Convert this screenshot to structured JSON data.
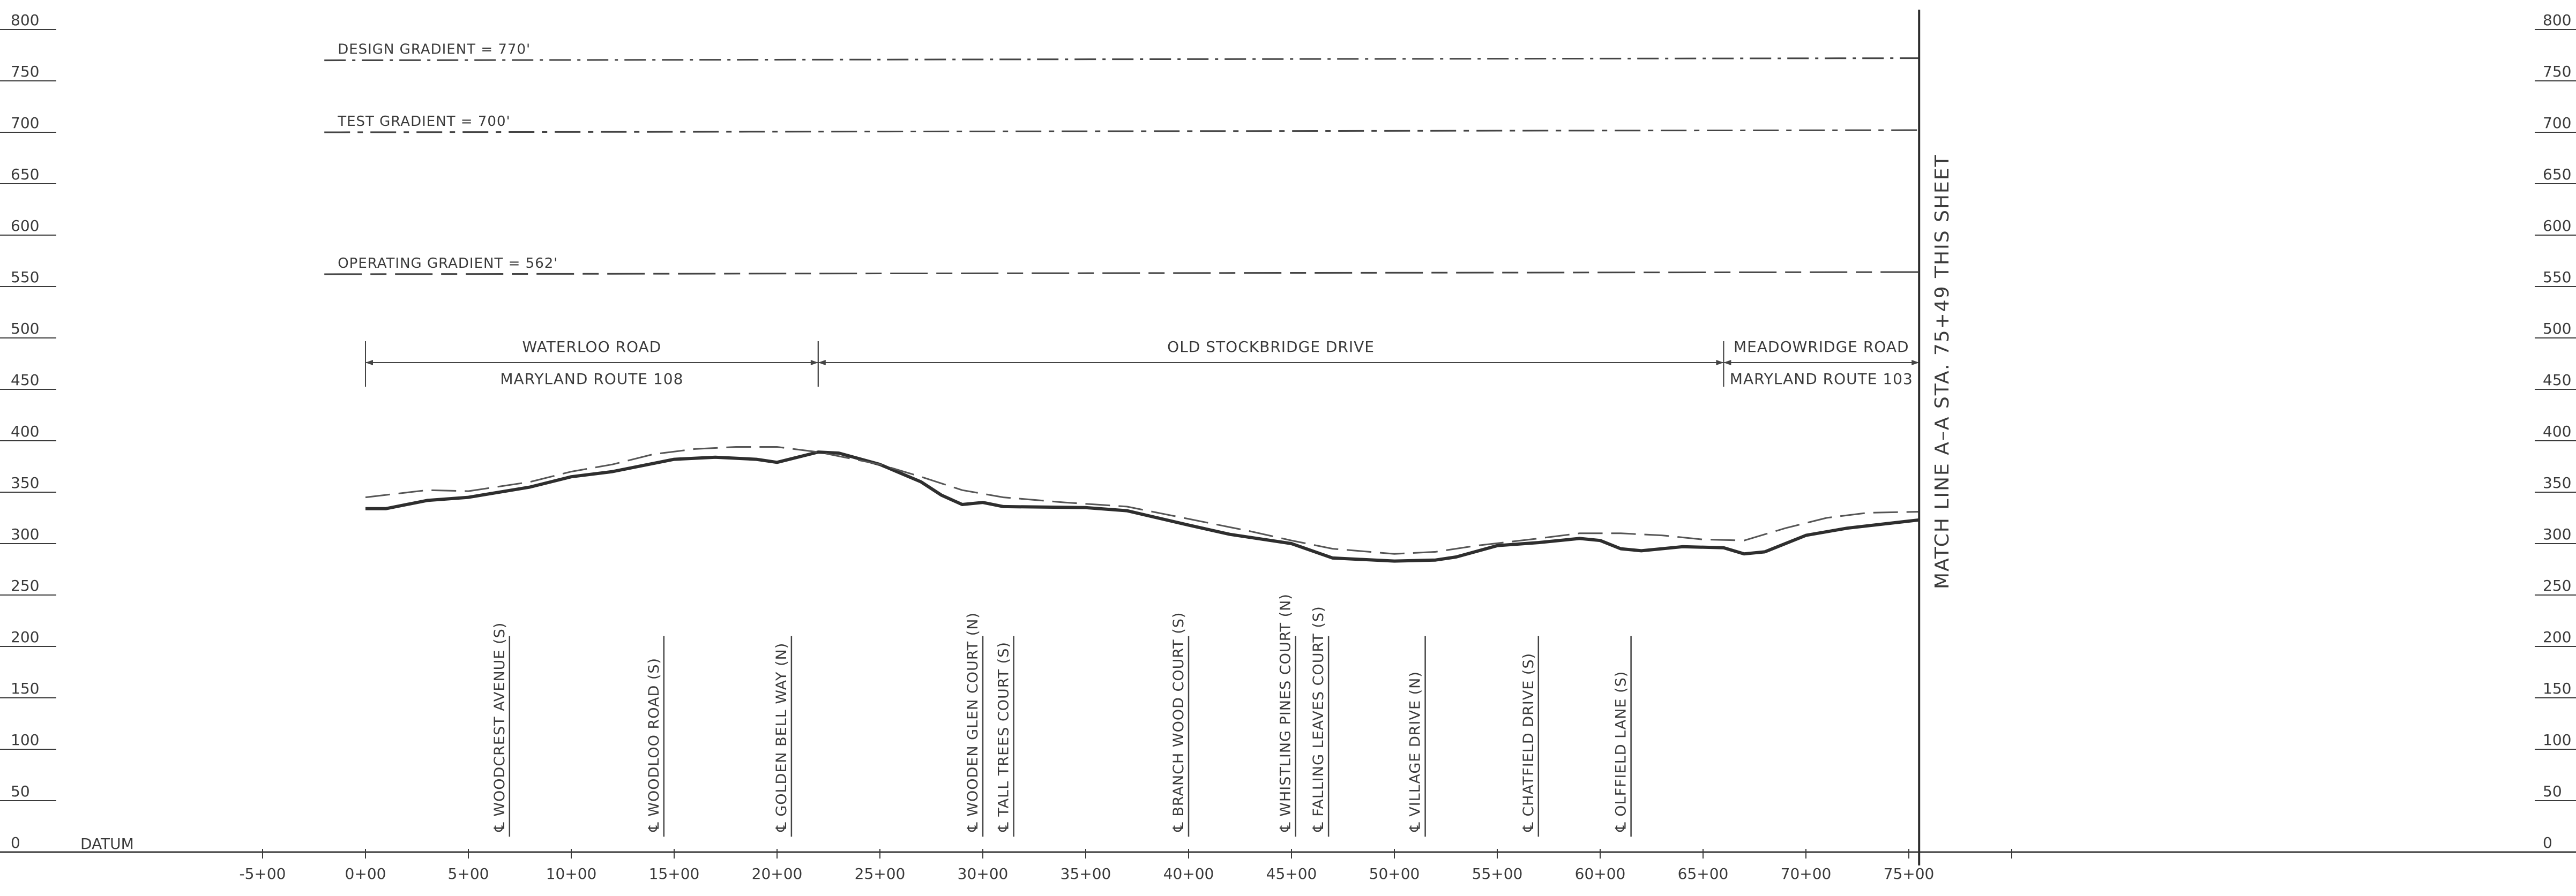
{
  "chart_data": {
    "type": "line",
    "y_ticks": [
      0,
      50,
      100,
      150,
      200,
      250,
      300,
      350,
      400,
      450,
      500,
      550,
      600,
      650,
      700,
      750,
      800
    ],
    "ylim": [
      0,
      800
    ],
    "x_ticks": [
      "-5+00",
      "0+00",
      "5+00",
      "10+00",
      "15+00",
      "20+00",
      "25+00",
      "30+00",
      "35+00",
      "40+00",
      "45+00",
      "50+00",
      "55+00",
      "60+00",
      "65+00",
      "70+00",
      "75+00"
    ],
    "xlim_stations": [
      -5,
      80
    ],
    "datum_label": "DATUM",
    "gradients": [
      {
        "label": "DESIGN GRADIENT = 770'",
        "elevation": 770,
        "start_station": -2,
        "end_station": 75.5
      },
      {
        "label": "TEST GRADIENT = 700'",
        "elevation": 700,
        "start_station": -2,
        "end_station": 75.5
      },
      {
        "label": "OPERATING GRADIENT = 562'",
        "elevation": 562,
        "start_station": -2,
        "end_station": 75.5
      }
    ],
    "roads": [
      {
        "top": "WATERLOO ROAD",
        "bottom": "MARYLAND ROUTE 108",
        "from_station": 0,
        "to_station": 22
      },
      {
        "top": "OLD STOCKBRIDGE DRIVE",
        "bottom": "",
        "from_station": 22,
        "to_station": 66
      },
      {
        "top": "MEADOWRIDGE ROAD",
        "bottom": "MARYLAND ROUTE 103",
        "from_station": 66,
        "to_station": 75.5
      }
    ],
    "streets": [
      {
        "label": "℄ WOODCREST AVENUE (S)",
        "station": 7
      },
      {
        "label": "℄ WOODLOO ROAD (S)",
        "station": 14.5
      },
      {
        "label": "℄ GOLDEN BELL WAY (N)",
        "station": 20.7
      },
      {
        "label": "℄ WOODEN GLEN COURT (N)",
        "station": 30
      },
      {
        "label": "℄ TALL TREES COURT (S)",
        "station": 31.5
      },
      {
        "label": "℄ BRANCH WOOD COURT (S)",
        "station": 40
      },
      {
        "label": "℄ WHISTLING PINES COURT (N)",
        "station": 45.2
      },
      {
        "label": "℄ FALLING LEAVES COURT (S)",
        "station": 46.8
      },
      {
        "label": "℄ VILLAGE DRIVE (N)",
        "station": 51.5
      },
      {
        "label": "℄ CHATFIELD DRIVE (S)",
        "station": 57
      },
      {
        "label": "℄ OLFFIELD LANE (S)",
        "station": 61.5
      }
    ],
    "match_line": "MATCH LINE A–A STA. 75+49 THIS SHEET",
    "series": [
      {
        "style": "solid",
        "points": [
          [
            0,
            334
          ],
          [
            1,
            334
          ],
          [
            3,
            342
          ],
          [
            5,
            345
          ],
          [
            8,
            355
          ],
          [
            10,
            365
          ],
          [
            12,
            370
          ],
          [
            15,
            382
          ],
          [
            17,
            384
          ],
          [
            19,
            382
          ],
          [
            20,
            379
          ],
          [
            22,
            389
          ],
          [
            23,
            388
          ],
          [
            25,
            377
          ],
          [
            27,
            360
          ],
          [
            28,
            347
          ],
          [
            29,
            338
          ],
          [
            30,
            340
          ],
          [
            31,
            336
          ],
          [
            35,
            335
          ],
          [
            37,
            332
          ],
          [
            40,
            318
          ],
          [
            42,
            309
          ],
          [
            45,
            300
          ],
          [
            47,
            286
          ],
          [
            50,
            283
          ],
          [
            52,
            284
          ],
          [
            53,
            287
          ],
          [
            55,
            298
          ],
          [
            57,
            301
          ],
          [
            59,
            305
          ],
          [
            60,
            303
          ],
          [
            61,
            295
          ],
          [
            62,
            293
          ],
          [
            64,
            297
          ],
          [
            66,
            296
          ],
          [
            67,
            290
          ],
          [
            68,
            292
          ],
          [
            70,
            308
          ],
          [
            72,
            315
          ],
          [
            75.5,
            323
          ]
        ]
      },
      {
        "style": "dashed",
        "points": [
          [
            0,
            345
          ],
          [
            3,
            352
          ],
          [
            5,
            351
          ],
          [
            8,
            360
          ],
          [
            10,
            370
          ],
          [
            12,
            377
          ],
          [
            14,
            387
          ],
          [
            16,
            392
          ],
          [
            18,
            394
          ],
          [
            20,
            394
          ],
          [
            22,
            389
          ],
          [
            25,
            377
          ],
          [
            27,
            365
          ],
          [
            29,
            352
          ],
          [
            31,
            345
          ],
          [
            34,
            340
          ],
          [
            37,
            336
          ],
          [
            40,
            324
          ],
          [
            43,
            312
          ],
          [
            45,
            303
          ],
          [
            47,
            295
          ],
          [
            50,
            290
          ],
          [
            52,
            292
          ],
          [
            54,
            298
          ],
          [
            57,
            305
          ],
          [
            59,
            310
          ],
          [
            61,
            310
          ],
          [
            63,
            308
          ],
          [
            65,
            304
          ],
          [
            67,
            303
          ],
          [
            69,
            315
          ],
          [
            71,
            325
          ],
          [
            73,
            330
          ],
          [
            75.5,
            331
          ]
        ]
      }
    ]
  }
}
